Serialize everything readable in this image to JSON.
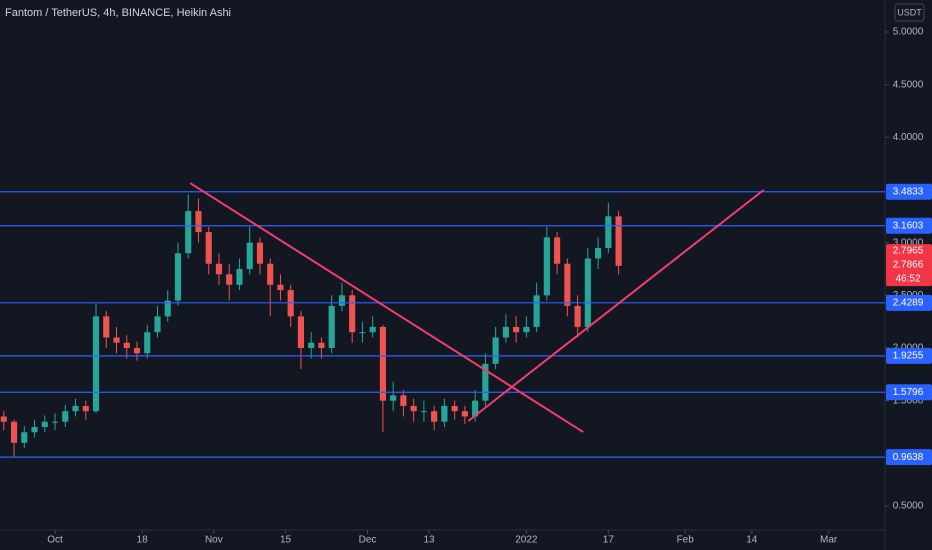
{
  "chart_data": {
    "type": "candlestick",
    "title": "Fantom / TetherUS, 4h, BINANCE, Heikin Ashi",
    "currency": "USDT",
    "countdown": "46:52",
    "up_color": "#26a69a",
    "down_color": "#ef5350",
    "x": [
      -10,
      -8,
      -6,
      -4,
      -2,
      0,
      2,
      4,
      6,
      8,
      10,
      12,
      14,
      16,
      18,
      20,
      22,
      24,
      26,
      28,
      30,
      32,
      34,
      36,
      38,
      40,
      42,
      44,
      46,
      48,
      50,
      52,
      54,
      56,
      58,
      60,
      62,
      64,
      66,
      68,
      70,
      72,
      74,
      76,
      78,
      80,
      82,
      84,
      86,
      88,
      90,
      92,
      94,
      96,
      98,
      100,
      102,
      104,
      106,
      108,
      110
    ],
    "open": [
      1.35,
      1.3,
      1.1,
      1.2,
      1.25,
      1.3,
      1.3,
      1.4,
      1.45,
      1.4,
      2.3,
      2.1,
      2.05,
      2.0,
      1.95,
      2.15,
      2.3,
      2.45,
      2.9,
      3.3,
      3.1,
      2.8,
      2.7,
      2.6,
      2.75,
      3.0,
      2.8,
      2.6,
      2.55,
      2.3,
      2.0,
      2.05,
      2.0,
      2.4,
      2.5,
      2.15,
      2.15,
      2.2,
      1.5,
      1.55,
      1.45,
      1.4,
      1.4,
      1.3,
      1.45,
      1.4,
      1.35,
      1.5,
      1.85,
      2.1,
      2.2,
      2.15,
      2.2,
      2.5,
      3.05,
      2.8,
      2.4,
      2.2,
      2.85,
      2.95,
      3.25
    ],
    "high": [
      1.4,
      1.32,
      1.26,
      1.32,
      1.36,
      1.38,
      1.46,
      1.52,
      1.5,
      2.42,
      2.35,
      2.2,
      2.12,
      2.06,
      2.22,
      2.4,
      2.55,
      3.0,
      3.46,
      3.42,
      3.15,
      2.9,
      2.8,
      2.85,
      3.15,
      3.05,
      2.85,
      2.7,
      2.6,
      2.35,
      2.15,
      2.1,
      2.5,
      2.62,
      2.55,
      2.25,
      2.3,
      2.22,
      1.68,
      1.6,
      1.52,
      1.5,
      1.45,
      1.52,
      1.5,
      1.45,
      1.6,
      1.95,
      2.2,
      2.32,
      2.3,
      2.3,
      2.62,
      3.15,
      3.1,
      2.85,
      2.5,
      2.95,
      3.05,
      3.38,
      3.3
    ],
    "low": [
      1.22,
      0.96,
      1.05,
      1.15,
      1.2,
      1.22,
      1.25,
      1.35,
      1.32,
      1.38,
      2.0,
      1.95,
      1.9,
      1.88,
      1.9,
      2.1,
      2.25,
      2.4,
      2.85,
      3.0,
      2.7,
      2.6,
      2.45,
      2.55,
      2.7,
      2.7,
      2.3,
      2.45,
      2.2,
      1.8,
      1.9,
      1.9,
      1.95,
      2.35,
      2.05,
      2.05,
      2.1,
      1.2,
      1.4,
      1.35,
      1.3,
      1.3,
      1.22,
      1.25,
      1.32,
      1.28,
      1.3,
      1.45,
      1.8,
      2.05,
      2.05,
      2.1,
      2.15,
      2.45,
      2.7,
      2.3,
      2.1,
      2.15,
      2.75,
      2.9,
      2.7
    ],
    "close": [
      1.3,
      1.1,
      1.2,
      1.25,
      1.3,
      1.3,
      1.4,
      1.45,
      1.4,
      2.3,
      2.1,
      2.05,
      2.0,
      1.95,
      2.15,
      2.3,
      2.45,
      2.9,
      3.3,
      3.1,
      2.8,
      2.7,
      2.6,
      2.75,
      3.0,
      2.8,
      2.6,
      2.55,
      2.3,
      2.0,
      2.05,
      2.0,
      2.4,
      2.5,
      2.15,
      2.15,
      2.2,
      1.5,
      1.55,
      1.45,
      1.4,
      1.4,
      1.3,
      1.45,
      1.4,
      1.35,
      1.5,
      1.85,
      2.1,
      2.2,
      2.15,
      2.2,
      2.5,
      3.05,
      2.8,
      2.4,
      2.2,
      2.85,
      2.95,
      3.25,
      2.78
    ],
    "levels": [
      3.4833,
      3.1603,
      2.4289,
      1.9255,
      1.5796,
      0.9638
    ],
    "level_color": "#2962ff",
    "price_labels": [
      2.7965,
      2.7866
    ],
    "trendlines": [
      {
        "x": [
          26.37,
          103.1
        ],
        "y": [
          3.566,
          1.202
        ],
        "color": "#f23d6d"
      },
      {
        "x": [
          80.66,
          138.3
        ],
        "y": [
          1.307,
          3.5
        ],
        "color": "#f23d6d"
      }
    ],
    "xlim": [
      -10.74,
      162
    ],
    "ylim": [
      0.2,
      5.2
    ],
    "xticks": [
      {
        "value": 0,
        "label": "Oct"
      },
      {
        "value": 17,
        "label": "18"
      },
      {
        "value": 31,
        "label": "Nov"
      },
      {
        "value": 45,
        "label": "15"
      },
      {
        "value": 61,
        "label": "Dec"
      },
      {
        "value": 73,
        "label": "13"
      },
      {
        "value": 92,
        "label": "2022"
      },
      {
        "value": 108,
        "label": "17"
      },
      {
        "value": 123,
        "label": "Feb"
      },
      {
        "value": 136,
        "label": "14"
      },
      {
        "value": 151,
        "label": "Mar"
      }
    ],
    "yticks": [
      {
        "value": 5,
        "label": "5.0000"
      },
      {
        "value": 4.5,
        "label": "4.5000"
      },
      {
        "value": 4,
        "label": "4.0000"
      },
      {
        "value": 3,
        "label": "3.0000"
      },
      {
        "value": 2.5,
        "label": "2.5000"
      },
      {
        "value": 2,
        "label": "2.0000"
      },
      {
        "value": 1.5,
        "label": "1.5000"
      },
      {
        "value": 0.5,
        "label": "0.5000"
      }
    ]
  }
}
